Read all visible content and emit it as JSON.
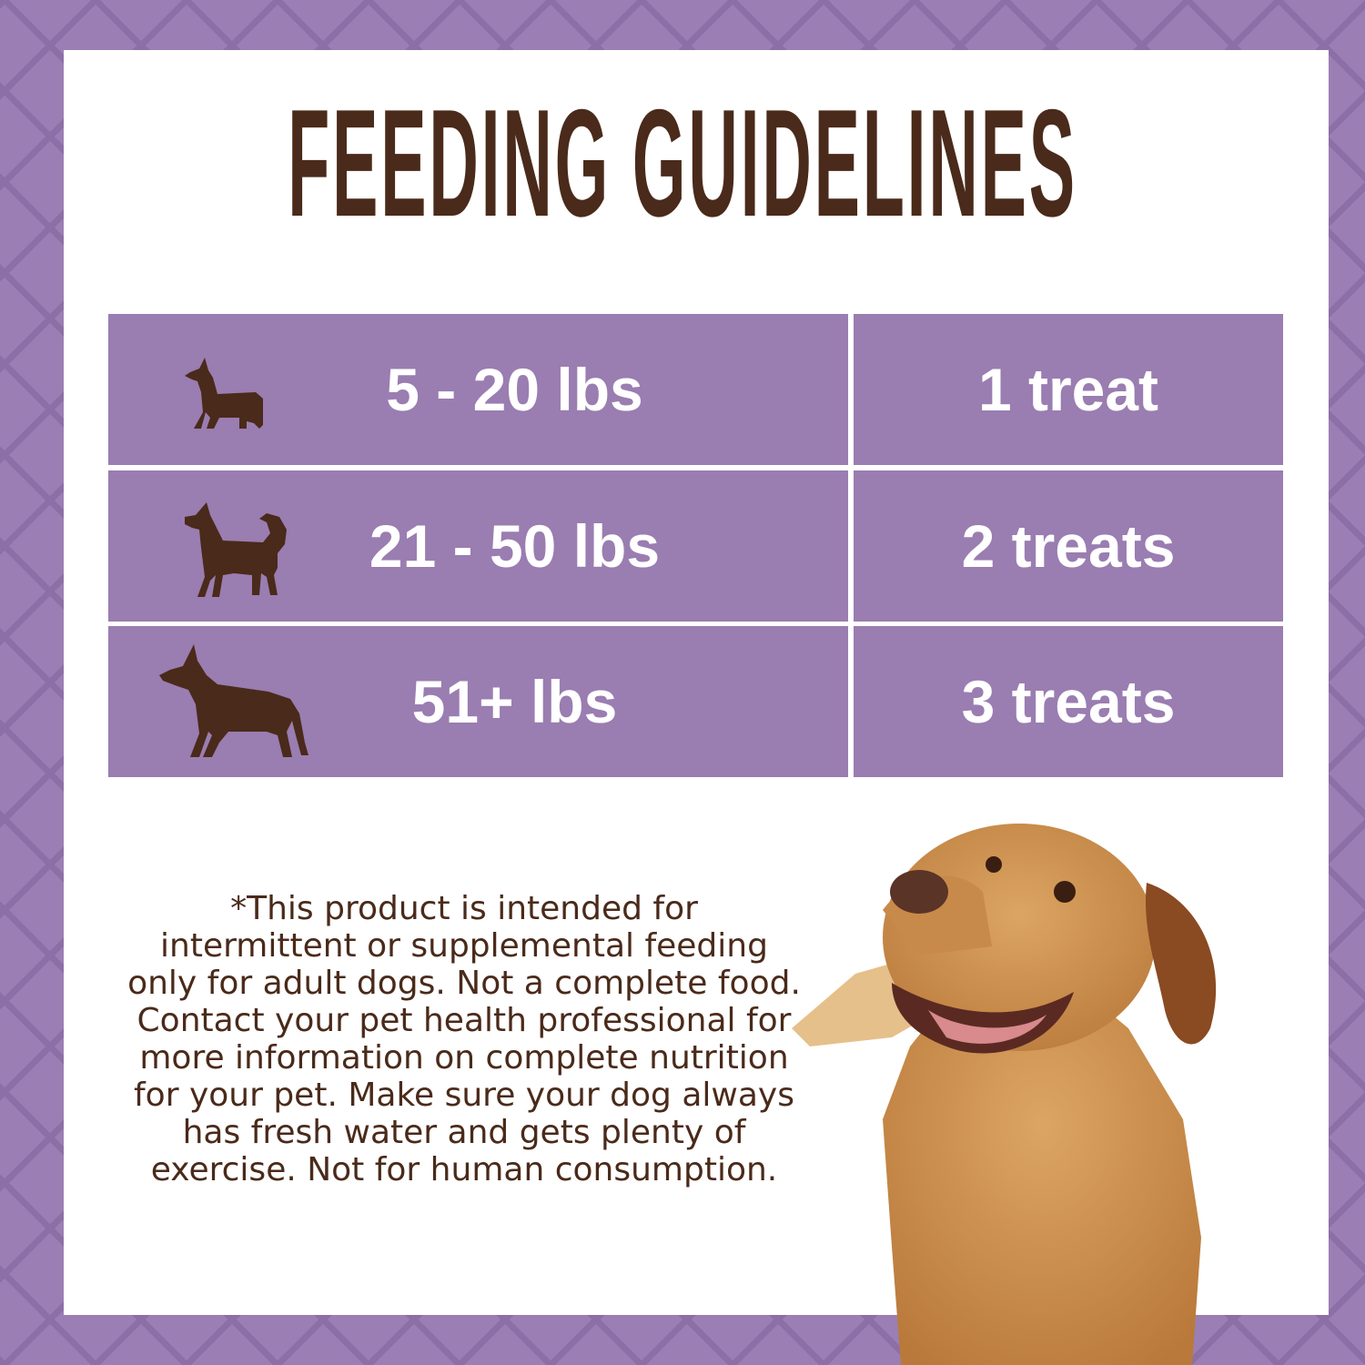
{
  "title": "FEEDING GUIDELINES",
  "colors": {
    "border": "#9b7fb4",
    "table": "#9a7db1",
    "text": "#4a2a1a",
    "panel": "#ffffff"
  },
  "table": {
    "rows": [
      {
        "icon": "small-dog-icon",
        "weight": "5 - 20 lbs",
        "amount": "1 treat"
      },
      {
        "icon": "medium-dog-icon",
        "weight": "21 - 50 lbs",
        "amount": "2 treats"
      },
      {
        "icon": "large-dog-icon",
        "weight": "51+ lbs",
        "amount": "3 treats"
      }
    ]
  },
  "disclaimer": "*This product is intended for intermittent or supplemental feeding only for adult dogs. Not a complete food. Contact your pet health professional for more information on complete nutrition for your pet. Make sure your dog always has fresh water and gets plenty of exercise. Not for human consumption."
}
